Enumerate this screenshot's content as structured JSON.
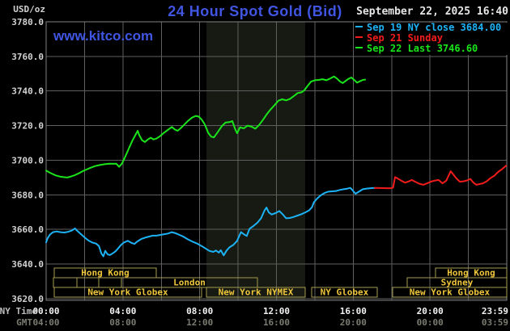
{
  "header": {
    "unit_label": "USD/oz",
    "title": "24 Hour Spot Gold (Bid)",
    "watermark": "www.kitco.com",
    "datetime": "September 22, 2025 16:40"
  },
  "legend": {
    "items": [
      {
        "text": "Sep 19 NY close 3684.00",
        "color": "#1db2f5"
      },
      {
        "text": "Sep 21 Sunday",
        "color": "#f31c1c"
      },
      {
        "text": "Sep 22 Last 3746.60",
        "color": "#1ae41a"
      }
    ]
  },
  "axes": {
    "ny_time_label": "NY Time",
    "gmt_label": "GMT",
    "tick_hours": [
      0,
      4,
      8,
      12,
      16,
      20,
      24
    ],
    "ny_ticks": [
      "00:00",
      "04:00",
      "08:00",
      "12:00",
      "16:00",
      "20:00",
      "23:59"
    ],
    "gmt_ticks": [
      "04:00",
      "08:00",
      "12:00",
      "16:00",
      "20:00",
      "00:00",
      "03:59"
    ],
    "y_ticks": [
      "3780.0",
      "3760.0",
      "3740.0",
      "3720.0",
      "3700.0",
      "3680.0",
      "3660.0",
      "3640.0",
      "3620.0"
    ]
  },
  "colors": {
    "background": "#000000",
    "grid": "#5f5f5f",
    "plot_border": "#828282",
    "band": "#161a12",
    "title_blue": "#4055e2",
    "date_text": "#e6e6e6",
    "axis_text": "#d2d2d2",
    "ny_tick_text": "#f2f2f2",
    "gmt_tick_text": "#7b7b72",
    "axis_caption": "#bdbdbd",
    "session_border": "#a59b4e",
    "session_text": "#eec63b"
  },
  "chart_data": {
    "type": "line",
    "title": "24 Hour Spot Gold (Bid)",
    "xlabel": "NY Time (hours)",
    "ylabel": "USD/oz",
    "xlim": [
      0,
      24
    ],
    "ylim": [
      3619,
      3780
    ],
    "y_tick_step": 20,
    "x_gridline_step_hours": 2,
    "grid": true,
    "legend_position": "top-right",
    "highlight_band": {
      "x0": 8.35,
      "x1": 13.5,
      "label": "NYMEX session"
    },
    "sessions": [
      {
        "row": 0,
        "start": 0.42,
        "end": 5.74,
        "label": "Hong Kong"
      },
      {
        "row": 0,
        "start": 20.29,
        "end": 24,
        "label": "Hong Kong"
      },
      {
        "row": 1,
        "start": 0.38,
        "end": 1.6,
        "label": ""
      },
      {
        "row": 1,
        "start": 1.6,
        "end": 2.74,
        "label": ""
      },
      {
        "row": 1,
        "start": 2.74,
        "end": 3.92,
        "label": ""
      },
      {
        "row": 1,
        "start": 3.92,
        "end": 11.01,
        "label": "London"
      },
      {
        "row": 1,
        "start": 18.81,
        "end": 24,
        "label": "Sydney"
      },
      {
        "row": 2,
        "start": 0.42,
        "end": 8.1,
        "label": "New York Globex"
      },
      {
        "row": 2,
        "start": 8.35,
        "end": 13.5,
        "label": "New York NYMEX"
      },
      {
        "row": 2,
        "start": 13.83,
        "end": 17.25,
        "label": "NY Globex"
      },
      {
        "row": 2,
        "start": 18.05,
        "end": 24,
        "label": "New York Globex"
      }
    ],
    "series": [
      {
        "name": "Sep 19 NY close",
        "color": "#1db2f5",
        "last_value": 3684.0,
        "points": [
          [
            0,
            3652.5
          ],
          [
            0.08,
            3655
          ],
          [
            0.2,
            3657
          ],
          [
            0.35,
            3658.4
          ],
          [
            0.55,
            3658.8
          ],
          [
            0.75,
            3658.4
          ],
          [
            0.95,
            3658.2
          ],
          [
            1.15,
            3658.6
          ],
          [
            1.35,
            3659.4
          ],
          [
            1.5,
            3660.6
          ],
          [
            1.62,
            3659.2
          ],
          [
            1.8,
            3657.4
          ],
          [
            2.0,
            3655.4
          ],
          [
            2.2,
            3653.6
          ],
          [
            2.4,
            3652.4
          ],
          [
            2.6,
            3651.8
          ],
          [
            2.75,
            3650.4
          ],
          [
            2.88,
            3646
          ],
          [
            2.98,
            3644.4
          ],
          [
            3.08,
            3647.6
          ],
          [
            3.2,
            3645.6
          ],
          [
            3.32,
            3645.2
          ],
          [
            3.45,
            3646
          ],
          [
            3.6,
            3647.2
          ],
          [
            3.75,
            3649
          ],
          [
            3.9,
            3651
          ],
          [
            4.05,
            3652.4
          ],
          [
            4.25,
            3653.4
          ],
          [
            4.45,
            3652.2
          ],
          [
            4.6,
            3651.6
          ],
          [
            4.75,
            3653
          ],
          [
            4.95,
            3654.4
          ],
          [
            5.15,
            3655.2
          ],
          [
            5.35,
            3655.8
          ],
          [
            5.55,
            3656.4
          ],
          [
            5.75,
            3656.4
          ],
          [
            5.95,
            3656.8
          ],
          [
            6.15,
            3657.2
          ],
          [
            6.35,
            3657.6
          ],
          [
            6.55,
            3658.4
          ],
          [
            6.75,
            3657.8
          ],
          [
            6.95,
            3656.8
          ],
          [
            7.15,
            3655.8
          ],
          [
            7.4,
            3654.2
          ],
          [
            7.65,
            3652.8
          ],
          [
            7.9,
            3651.6
          ],
          [
            8.1,
            3650.4
          ],
          [
            8.3,
            3649
          ],
          [
            8.5,
            3647.6
          ],
          [
            8.7,
            3647
          ],
          [
            8.85,
            3647.8
          ],
          [
            9.0,
            3646.6
          ],
          [
            9.1,
            3648
          ],
          [
            9.25,
            3645
          ],
          [
            9.4,
            3647.8
          ],
          [
            9.55,
            3649.6
          ],
          [
            9.75,
            3651
          ],
          [
            9.95,
            3653.4
          ],
          [
            10.15,
            3658.4
          ],
          [
            10.3,
            3657.2
          ],
          [
            10.45,
            3656.2
          ],
          [
            10.6,
            3660.4
          ],
          [
            10.8,
            3662
          ],
          [
            11.0,
            3663.8
          ],
          [
            11.2,
            3666.4
          ],
          [
            11.38,
            3671
          ],
          [
            11.48,
            3672.6
          ],
          [
            11.6,
            3669.8
          ],
          [
            11.75,
            3668.6
          ],
          [
            11.95,
            3669.4
          ],
          [
            12.15,
            3670.6
          ],
          [
            12.35,
            3668.4
          ],
          [
            12.5,
            3666.4
          ],
          [
            12.7,
            3666.6
          ],
          [
            12.9,
            3667.2
          ],
          [
            13.1,
            3668
          ],
          [
            13.3,
            3668.8
          ],
          [
            13.5,
            3669.8
          ],
          [
            13.7,
            3671
          ],
          [
            13.85,
            3672.8
          ],
          [
            13.95,
            3675.6
          ],
          [
            14.1,
            3677.6
          ],
          [
            14.3,
            3679.6
          ],
          [
            14.5,
            3681
          ],
          [
            14.7,
            3681.8
          ],
          [
            14.9,
            3682
          ],
          [
            15.1,
            3682.2
          ],
          [
            15.3,
            3682.8
          ],
          [
            15.5,
            3683.2
          ],
          [
            15.7,
            3683.6
          ],
          [
            15.85,
            3684
          ],
          [
            16.0,
            3682.2
          ],
          [
            16.12,
            3680.6
          ],
          [
            16.3,
            3681.8
          ],
          [
            16.5,
            3683.2
          ],
          [
            16.7,
            3683.6
          ],
          [
            16.9,
            3683.8
          ],
          [
            17.12,
            3684
          ]
        ]
      },
      {
        "name": "Sep 21 Sunday",
        "color": "#f31c1c",
        "points": [
          [
            17.12,
            3684
          ],
          [
            17.4,
            3683.9
          ],
          [
            17.7,
            3683.8
          ],
          [
            17.95,
            3683.8
          ],
          [
            18.08,
            3684.2
          ],
          [
            18.18,
            3690.2
          ],
          [
            18.32,
            3689.4
          ],
          [
            18.5,
            3688.2
          ],
          [
            18.7,
            3687
          ],
          [
            18.9,
            3687.8
          ],
          [
            19.05,
            3688.6
          ],
          [
            19.25,
            3687.4
          ],
          [
            19.45,
            3686.4
          ],
          [
            19.65,
            3685.8
          ],
          [
            19.85,
            3686.6
          ],
          [
            20.05,
            3687.6
          ],
          [
            20.25,
            3688.2
          ],
          [
            20.45,
            3688.6
          ],
          [
            20.65,
            3686.6
          ],
          [
            20.85,
            3688.2
          ],
          [
            21.0,
            3691.8
          ],
          [
            21.08,
            3693.6
          ],
          [
            21.2,
            3692
          ],
          [
            21.35,
            3689.8
          ],
          [
            21.55,
            3687.6
          ],
          [
            21.75,
            3687.8
          ],
          [
            21.95,
            3688.4
          ],
          [
            22.1,
            3689.2
          ],
          [
            22.25,
            3687.2
          ],
          [
            22.42,
            3685.8
          ],
          [
            22.58,
            3686.2
          ],
          [
            22.75,
            3686.6
          ],
          [
            22.95,
            3687.8
          ],
          [
            23.15,
            3689.6
          ],
          [
            23.35,
            3691
          ],
          [
            23.55,
            3693.2
          ],
          [
            23.75,
            3694.8
          ],
          [
            23.96,
            3696.8
          ]
        ]
      },
      {
        "name": "Sep 22 Last",
        "color": "#1ae41a",
        "last_value": 3746.6,
        "points": [
          [
            0,
            3694
          ],
          [
            0.15,
            3693
          ],
          [
            0.3,
            3692.2
          ],
          [
            0.5,
            3691.2
          ],
          [
            0.7,
            3690.6
          ],
          [
            0.9,
            3690.2
          ],
          [
            1.1,
            3690
          ],
          [
            1.3,
            3690.6
          ],
          [
            1.5,
            3691.4
          ],
          [
            1.7,
            3692.4
          ],
          [
            1.9,
            3693.6
          ],
          [
            2.1,
            3694.6
          ],
          [
            2.3,
            3695.6
          ],
          [
            2.55,
            3696.6
          ],
          [
            2.8,
            3697.2
          ],
          [
            3.05,
            3697.7
          ],
          [
            3.3,
            3698
          ],
          [
            3.5,
            3697.9
          ],
          [
            3.65,
            3698
          ],
          [
            3.8,
            3696.2
          ],
          [
            3.95,
            3698
          ],
          [
            4.1,
            3701.5
          ],
          [
            4.3,
            3706.5
          ],
          [
            4.5,
            3711.5
          ],
          [
            4.65,
            3714.5
          ],
          [
            4.77,
            3717
          ],
          [
            4.85,
            3714.5
          ],
          [
            5.0,
            3711.5
          ],
          [
            5.15,
            3710.5
          ],
          [
            5.3,
            3712
          ],
          [
            5.45,
            3713
          ],
          [
            5.6,
            3712
          ],
          [
            5.75,
            3712.5
          ],
          [
            5.95,
            3714
          ],
          [
            6.1,
            3715.5
          ],
          [
            6.3,
            3717.2
          ],
          [
            6.55,
            3719.2
          ],
          [
            6.7,
            3717.8
          ],
          [
            6.85,
            3717
          ],
          [
            7.0,
            3718.4
          ],
          [
            7.2,
            3720.6
          ],
          [
            7.4,
            3722.8
          ],
          [
            7.6,
            3724.6
          ],
          [
            7.8,
            3725.6
          ],
          [
            7.95,
            3725.2
          ],
          [
            8.1,
            3723.6
          ],
          [
            8.25,
            3721
          ],
          [
            8.45,
            3715.8
          ],
          [
            8.6,
            3713.6
          ],
          [
            8.75,
            3713.2
          ],
          [
            8.95,
            3716.4
          ],
          [
            9.15,
            3719.6
          ],
          [
            9.35,
            3721.8
          ],
          [
            9.55,
            3722
          ],
          [
            9.7,
            3722.6
          ],
          [
            9.85,
            3718
          ],
          [
            9.95,
            3715.6
          ],
          [
            10.1,
            3719
          ],
          [
            10.3,
            3718.4
          ],
          [
            10.5,
            3720
          ],
          [
            10.7,
            3719.4
          ],
          [
            10.9,
            3718.2
          ],
          [
            11.1,
            3720.4
          ],
          [
            11.3,
            3723.4
          ],
          [
            11.5,
            3726.6
          ],
          [
            11.7,
            3729.4
          ],
          [
            11.9,
            3731.8
          ],
          [
            12.1,
            3734.4
          ],
          [
            12.3,
            3735.2
          ],
          [
            12.5,
            3734.6
          ],
          [
            12.7,
            3735.4
          ],
          [
            12.9,
            3737
          ],
          [
            13.1,
            3738.8
          ],
          [
            13.3,
            3739.2
          ],
          [
            13.45,
            3740.4
          ],
          [
            13.6,
            3742.6
          ],
          [
            13.8,
            3745.4
          ],
          [
            14.0,
            3746.2
          ],
          [
            14.2,
            3746.4
          ],
          [
            14.4,
            3746.8
          ],
          [
            14.6,
            3746.2
          ],
          [
            14.8,
            3747.2
          ],
          [
            15.0,
            3748.4
          ],
          [
            15.15,
            3747.2
          ],
          [
            15.3,
            3745.6
          ],
          [
            15.45,
            3744.6
          ],
          [
            15.6,
            3745.8
          ],
          [
            15.75,
            3747
          ],
          [
            15.9,
            3747.8
          ],
          [
            16.05,
            3746.4
          ],
          [
            16.2,
            3744.8
          ],
          [
            16.35,
            3745.6
          ],
          [
            16.5,
            3746.4
          ],
          [
            16.62,
            3746.6
          ]
        ]
      }
    ]
  }
}
